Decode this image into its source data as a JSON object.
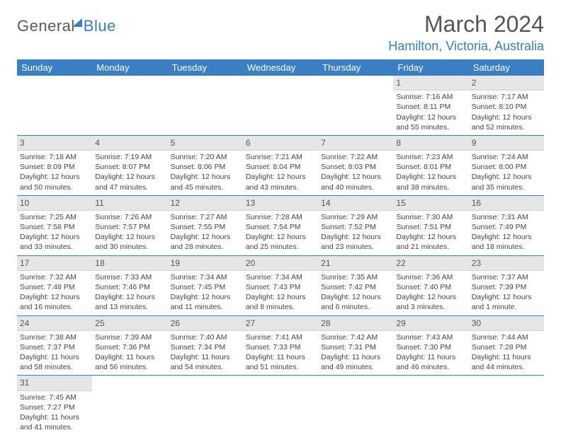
{
  "logo": {
    "part1": "General",
    "part2": "Blue"
  },
  "title": {
    "month": "March 2024",
    "location": "Hamilton, Victoria, Australia"
  },
  "weekdays": [
    "Sunday",
    "Monday",
    "Tuesday",
    "Wednesday",
    "Thursday",
    "Friday",
    "Saturday"
  ],
  "colors": {
    "accent": "#3a7fc4",
    "headerText": "#ffffff",
    "dayBarBg": "#e6e6e6",
    "textGray": "#555555",
    "bodyText": "#444444"
  },
  "layout": {
    "columns": 7,
    "rows": 6
  },
  "cells": [
    {
      "blank": true
    },
    {
      "blank": true
    },
    {
      "blank": true
    },
    {
      "blank": true
    },
    {
      "blank": true
    },
    {
      "day": "1",
      "sunrise": "Sunrise: 7:16 AM",
      "sunset": "Sunset: 8:11 PM",
      "daylight1": "Daylight: 12 hours",
      "daylight2": "and 55 minutes."
    },
    {
      "day": "2",
      "sunrise": "Sunrise: 7:17 AM",
      "sunset": "Sunset: 8:10 PM",
      "daylight1": "Daylight: 12 hours",
      "daylight2": "and 52 minutes."
    },
    {
      "day": "3",
      "sunrise": "Sunrise: 7:18 AM",
      "sunset": "Sunset: 8:09 PM",
      "daylight1": "Daylight: 12 hours",
      "daylight2": "and 50 minutes."
    },
    {
      "day": "4",
      "sunrise": "Sunrise: 7:19 AM",
      "sunset": "Sunset: 8:07 PM",
      "daylight1": "Daylight: 12 hours",
      "daylight2": "and 47 minutes."
    },
    {
      "day": "5",
      "sunrise": "Sunrise: 7:20 AM",
      "sunset": "Sunset: 8:06 PM",
      "daylight1": "Daylight: 12 hours",
      "daylight2": "and 45 minutes."
    },
    {
      "day": "6",
      "sunrise": "Sunrise: 7:21 AM",
      "sunset": "Sunset: 8:04 PM",
      "daylight1": "Daylight: 12 hours",
      "daylight2": "and 43 minutes."
    },
    {
      "day": "7",
      "sunrise": "Sunrise: 7:22 AM",
      "sunset": "Sunset: 8:03 PM",
      "daylight1": "Daylight: 12 hours",
      "daylight2": "and 40 minutes."
    },
    {
      "day": "8",
      "sunrise": "Sunrise: 7:23 AM",
      "sunset": "Sunset: 8:01 PM",
      "daylight1": "Daylight: 12 hours",
      "daylight2": "and 38 minutes."
    },
    {
      "day": "9",
      "sunrise": "Sunrise: 7:24 AM",
      "sunset": "Sunset: 8:00 PM",
      "daylight1": "Daylight: 12 hours",
      "daylight2": "and 35 minutes."
    },
    {
      "day": "10",
      "sunrise": "Sunrise: 7:25 AM",
      "sunset": "Sunset: 7:58 PM",
      "daylight1": "Daylight: 12 hours",
      "daylight2": "and 33 minutes."
    },
    {
      "day": "11",
      "sunrise": "Sunrise: 7:26 AM",
      "sunset": "Sunset: 7:57 PM",
      "daylight1": "Daylight: 12 hours",
      "daylight2": "and 30 minutes."
    },
    {
      "day": "12",
      "sunrise": "Sunrise: 7:27 AM",
      "sunset": "Sunset: 7:55 PM",
      "daylight1": "Daylight: 12 hours",
      "daylight2": "and 28 minutes."
    },
    {
      "day": "13",
      "sunrise": "Sunrise: 7:28 AM",
      "sunset": "Sunset: 7:54 PM",
      "daylight1": "Daylight: 12 hours",
      "daylight2": "and 25 minutes."
    },
    {
      "day": "14",
      "sunrise": "Sunrise: 7:29 AM",
      "sunset": "Sunset: 7:52 PM",
      "daylight1": "Daylight: 12 hours",
      "daylight2": "and 23 minutes."
    },
    {
      "day": "15",
      "sunrise": "Sunrise: 7:30 AM",
      "sunset": "Sunset: 7:51 PM",
      "daylight1": "Daylight: 12 hours",
      "daylight2": "and 21 minutes."
    },
    {
      "day": "16",
      "sunrise": "Sunrise: 7:31 AM",
      "sunset": "Sunset: 7:49 PM",
      "daylight1": "Daylight: 12 hours",
      "daylight2": "and 18 minutes."
    },
    {
      "day": "17",
      "sunrise": "Sunrise: 7:32 AM",
      "sunset": "Sunset: 7:48 PM",
      "daylight1": "Daylight: 12 hours",
      "daylight2": "and 16 minutes."
    },
    {
      "day": "18",
      "sunrise": "Sunrise: 7:33 AM",
      "sunset": "Sunset: 7:46 PM",
      "daylight1": "Daylight: 12 hours",
      "daylight2": "and 13 minutes."
    },
    {
      "day": "19",
      "sunrise": "Sunrise: 7:34 AM",
      "sunset": "Sunset: 7:45 PM",
      "daylight1": "Daylight: 12 hours",
      "daylight2": "and 11 minutes."
    },
    {
      "day": "20",
      "sunrise": "Sunrise: 7:34 AM",
      "sunset": "Sunset: 7:43 PM",
      "daylight1": "Daylight: 12 hours",
      "daylight2": "and 8 minutes."
    },
    {
      "day": "21",
      "sunrise": "Sunrise: 7:35 AM",
      "sunset": "Sunset: 7:42 PM",
      "daylight1": "Daylight: 12 hours",
      "daylight2": "and 6 minutes."
    },
    {
      "day": "22",
      "sunrise": "Sunrise: 7:36 AM",
      "sunset": "Sunset: 7:40 PM",
      "daylight1": "Daylight: 12 hours",
      "daylight2": "and 3 minutes."
    },
    {
      "day": "23",
      "sunrise": "Sunrise: 7:37 AM",
      "sunset": "Sunset: 7:39 PM",
      "daylight1": "Daylight: 12 hours",
      "daylight2": "and 1 minute."
    },
    {
      "day": "24",
      "sunrise": "Sunrise: 7:38 AM",
      "sunset": "Sunset: 7:37 PM",
      "daylight1": "Daylight: 11 hours",
      "daylight2": "and 58 minutes."
    },
    {
      "day": "25",
      "sunrise": "Sunrise: 7:39 AM",
      "sunset": "Sunset: 7:36 PM",
      "daylight1": "Daylight: 11 hours",
      "daylight2": "and 56 minutes."
    },
    {
      "day": "26",
      "sunrise": "Sunrise: 7:40 AM",
      "sunset": "Sunset: 7:34 PM",
      "daylight1": "Daylight: 11 hours",
      "daylight2": "and 54 minutes."
    },
    {
      "day": "27",
      "sunrise": "Sunrise: 7:41 AM",
      "sunset": "Sunset: 7:33 PM",
      "daylight1": "Daylight: 11 hours",
      "daylight2": "and 51 minutes."
    },
    {
      "day": "28",
      "sunrise": "Sunrise: 7:42 AM",
      "sunset": "Sunset: 7:31 PM",
      "daylight1": "Daylight: 11 hours",
      "daylight2": "and 49 minutes."
    },
    {
      "day": "29",
      "sunrise": "Sunrise: 7:43 AM",
      "sunset": "Sunset: 7:30 PM",
      "daylight1": "Daylight: 11 hours",
      "daylight2": "and 46 minutes."
    },
    {
      "day": "30",
      "sunrise": "Sunrise: 7:44 AM",
      "sunset": "Sunset: 7:28 PM",
      "daylight1": "Daylight: 11 hours",
      "daylight2": "and 44 minutes."
    },
    {
      "day": "31",
      "sunrise": "Sunrise: 7:45 AM",
      "sunset": "Sunset: 7:27 PM",
      "daylight1": "Daylight: 11 hours",
      "daylight2": "and 41 minutes."
    },
    {
      "blank": true
    },
    {
      "blank": true
    },
    {
      "blank": true
    },
    {
      "blank": true
    },
    {
      "blank": true
    },
    {
      "blank": true
    }
  ]
}
